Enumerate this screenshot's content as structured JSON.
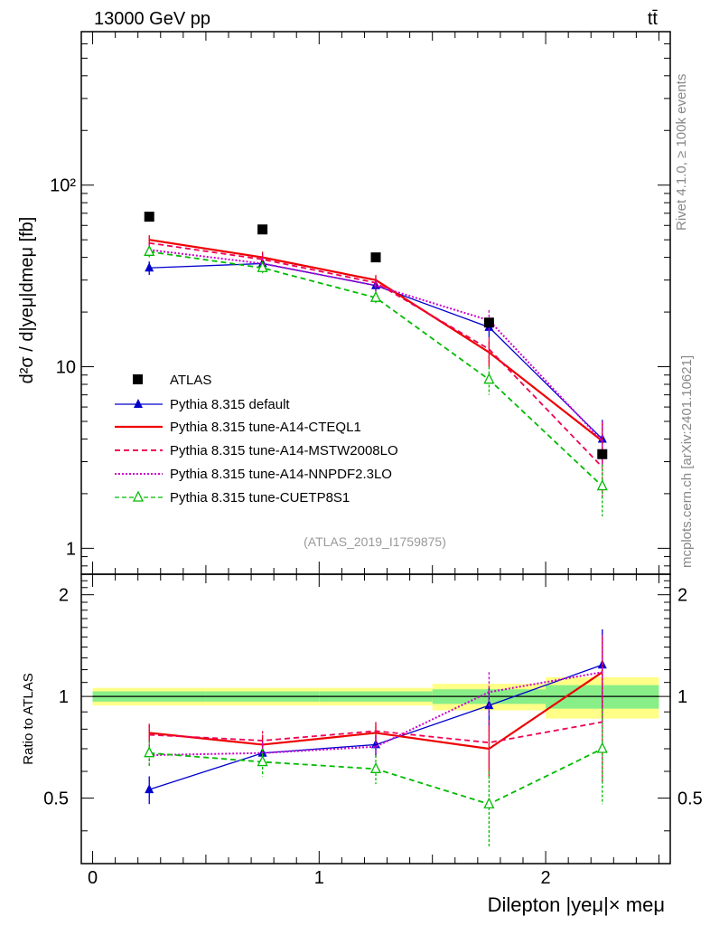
{
  "header": {
    "energy_label": "13000 GeV pp",
    "process_label": "tt̄"
  },
  "side_labels": {
    "rivet": "Rivet 4.1.0, ≥ 100k events",
    "mcplots": "mcplots.cern.ch [arXiv:2401.10621]"
  },
  "analysis_label": "(ATLAS_2019_I1759875)",
  "main_plot": {
    "ylabel": "d²σ / d|yeμ|dmeμ [fb]",
    "yscale": "log",
    "ylim": [
      0.72,
      700
    ],
    "yticks": [
      {
        "value": 1,
        "label": "1"
      },
      {
        "value": 10,
        "label": "10"
      },
      {
        "value": 100,
        "label": "10²"
      }
    ]
  },
  "ratio_plot": {
    "ylabel": "Ratio to ATLAS",
    "ylim": [
      0.32,
      2.3
    ],
    "yticks": [
      {
        "value": 0.5,
        "label": "0.5"
      },
      {
        "value": 1,
        "label": "1"
      },
      {
        "value": 2,
        "label": "2"
      }
    ]
  },
  "chart_data": {
    "type": "line",
    "title": "13000 GeV pp tt̄",
    "xlabel": "Dilepton |yeμ|× meμ",
    "xlim": [
      -0.05,
      2.55
    ],
    "xticks": [
      {
        "value": 0,
        "label": "0"
      },
      {
        "value": 1,
        "label": "1"
      },
      {
        "value": 2,
        "label": "2"
      }
    ],
    "bin_edges": [
      0,
      0.5,
      1,
      1.5,
      2,
      2.5
    ],
    "x": [
      0.25,
      0.75,
      1.25,
      1.75,
      2.25
    ],
    "data": {
      "name": "ATLAS",
      "values": [
        67,
        57,
        40,
        17.5,
        3.3
      ],
      "ratio_band_inner": [
        0.035,
        0.035,
        0.035,
        0.05,
        0.08
      ],
      "ratio_band_outer": [
        0.06,
        0.06,
        0.06,
        0.09,
        0.14
      ]
    },
    "series": [
      {
        "name": "Pythia 8.315 default",
        "color": "#0000cc",
        "style": "solid",
        "marker": "filled-triangle",
        "values": [
          35,
          37,
          28,
          16.5,
          4.0
        ],
        "errors": [
          3,
          3,
          2,
          2,
          1.1
        ],
        "ratio": [
          0.53,
          0.68,
          0.72,
          0.94,
          1.24
        ],
        "ratio_errors": [
          0.05,
          0.05,
          0.05,
          0.12,
          0.34
        ]
      },
      {
        "name": "Pythia 8.315 tune-A14-CTEQL1",
        "color": "#ee0000",
        "style": "solid-thick",
        "marker": "none",
        "values": [
          50,
          40,
          30,
          12,
          3.9
        ],
        "errors": [
          3,
          3,
          2,
          2,
          1.1
        ],
        "ratio": [
          0.78,
          0.72,
          0.78,
          0.7,
          1.18
        ],
        "ratio_errors": [
          0.05,
          0.05,
          0.05,
          0.12,
          0.34
        ]
      },
      {
        "name": "Pythia 8.315 tune-A14-MSTW2008LO",
        "color": "#ee0055",
        "style": "dashed",
        "marker": "none",
        "values": [
          48,
          39,
          29,
          12.5,
          2.8
        ],
        "errors": [
          3,
          3,
          2,
          2,
          0.9
        ],
        "ratio": [
          0.77,
          0.74,
          0.79,
          0.73,
          0.84
        ],
        "ratio_errors": [
          0.05,
          0.05,
          0.05,
          0.12,
          0.28
        ]
      },
      {
        "name": "Pythia 8.315 tune-A14-NNPDF2.3LO",
        "color": "#cc00cc",
        "style": "dotted",
        "marker": "none",
        "values": [
          44,
          37,
          28,
          18,
          3.9
        ],
        "errors": [
          3,
          3,
          2,
          2.5,
          1.1
        ],
        "ratio": [
          0.67,
          0.68,
          0.71,
          1.03,
          1.18
        ],
        "ratio_errors": [
          0.05,
          0.05,
          0.05,
          0.15,
          0.34
        ]
      },
      {
        "name": "Pythia 8.315 tune-CUETP8S1",
        "color": "#00bb00",
        "style": "dashed",
        "marker": "open-triangle",
        "values": [
          43,
          35,
          24,
          8.5,
          2.2
        ],
        "errors": [
          3,
          3,
          2,
          1.5,
          0.7
        ],
        "ratio": [
          0.68,
          0.64,
          0.61,
          0.48,
          0.7
        ],
        "ratio_errors": [
          0.06,
          0.06,
          0.06,
          0.12,
          0.22
        ]
      }
    ]
  }
}
